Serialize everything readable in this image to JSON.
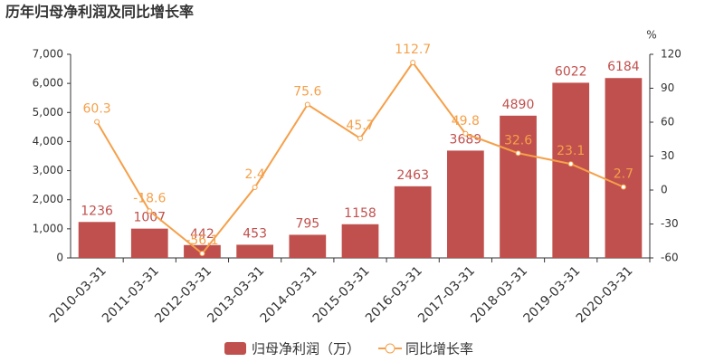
{
  "chart_data": {
    "type": "bar-line",
    "title": "历年归母净利润及同比增长率",
    "y2_label": "%",
    "categories": [
      "2010-03-31",
      "2011-03-31",
      "2012-03-31",
      "2013-03-31",
      "2014-03-31",
      "2015-03-31",
      "2016-03-31",
      "2017-03-31",
      "2018-03-31",
      "2019-03-31",
      "2020-03-31"
    ],
    "series": [
      {
        "name": "归母净利润（万）",
        "type": "bar",
        "color": "#c0504d",
        "axis": "y",
        "values": [
          1236,
          1007,
          442,
          453,
          795,
          1158,
          2463,
          3689,
          4890,
          6022,
          6184
        ]
      },
      {
        "name": "同比增长率",
        "type": "line",
        "color": "#f5a04a",
        "axis": "y2",
        "values": [
          60.3,
          -18.6,
          -56.1,
          2.4,
          75.6,
          45.7,
          112.7,
          49.8,
          32.6,
          23.1,
          2.7
        ]
      }
    ],
    "ylim": [
      0,
      7000
    ],
    "yticks": [
      0,
      {
        "value": 1000,
        "label": "1,000"
      },
      {
        "value": 2000,
        "label": "2,000"
      },
      {
        "value": 3000,
        "label": "3,000"
      },
      {
        "value": 4000,
        "label": "4,000"
      },
      {
        "value": 5000,
        "label": "5,000"
      },
      {
        "value": 6000,
        "label": "6,000"
      },
      {
        "value": 7000,
        "label": "7,000"
      }
    ],
    "y2lim": [
      -60,
      120
    ],
    "y2ticks": [
      -60,
      -30,
      0,
      30,
      60,
      90,
      120
    ]
  }
}
